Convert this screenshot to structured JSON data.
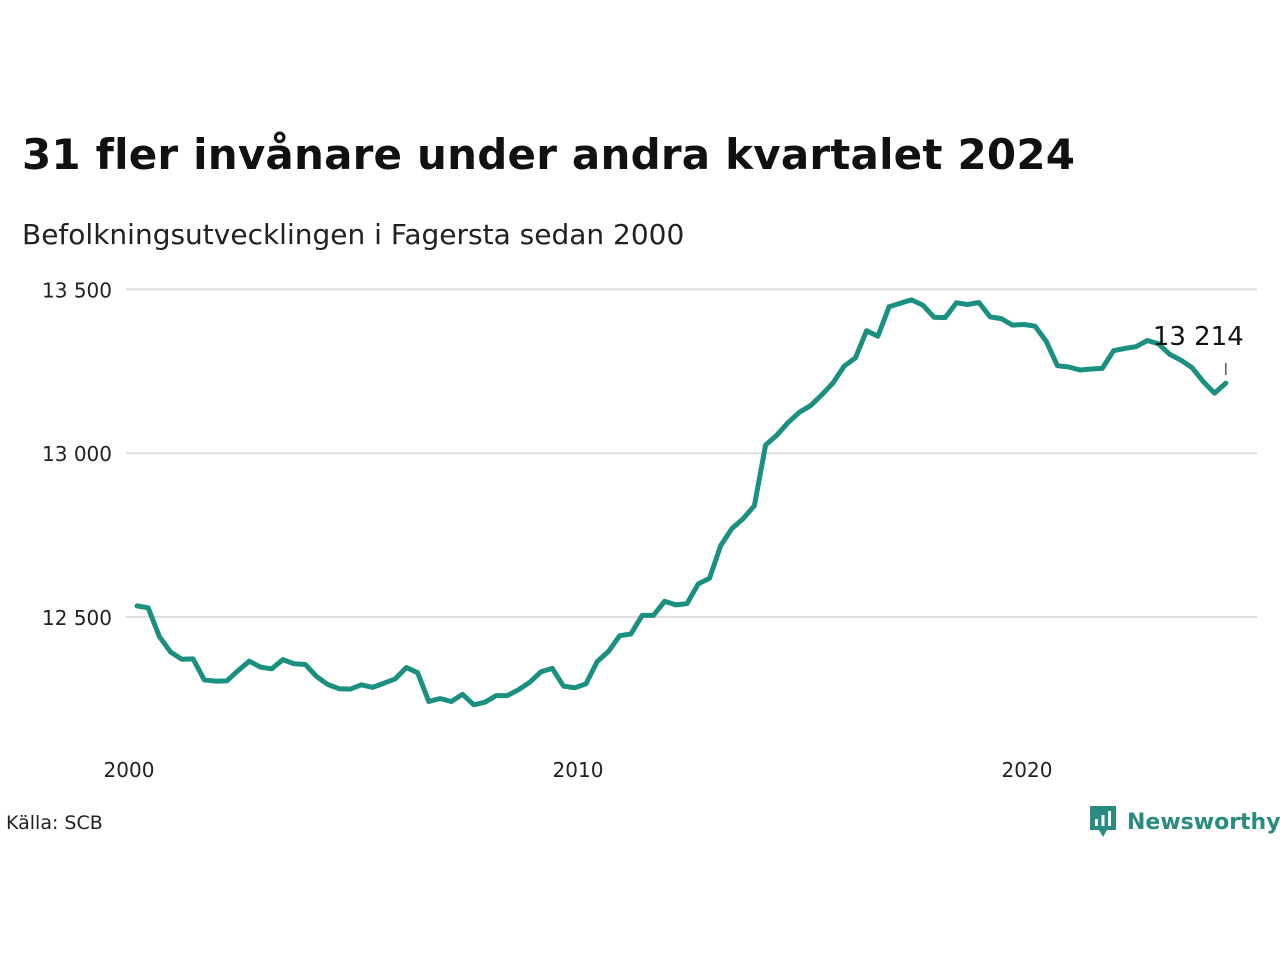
{
  "title": "31 fler invånare under andra kvartalet 2024",
  "subtitle": "Befolkningsutvecklingen i Fagersta sedan 2000",
  "source": "Källa: SCB",
  "brand": {
    "name": "Newsworthy",
    "icon": "newsworthy-logo-icon",
    "color": "#2a8c80"
  },
  "chart_data": {
    "type": "line",
    "x_unit": "year (quarterly)",
    "y_ticks": [
      12500,
      13000,
      13500
    ],
    "y_tick_labels": [
      "12 500",
      "13 000",
      "13 500"
    ],
    "x_ticks": [
      2000,
      2010,
      2020
    ],
    "x_tick_labels": [
      "2000",
      "2010",
      "2020"
    ],
    "ylim": [
      12270,
      13540
    ],
    "xlim": [
      1999.8,
      2024.8
    ],
    "grid": "horizontal",
    "line_color": "#1c9080",
    "annotation": {
      "x": 2024.25,
      "label": "13 214"
    },
    "x": [
      2000.0,
      2000.25,
      2000.5,
      2000.75,
      2001.0,
      2001.25,
      2001.5,
      2001.75,
      2002.0,
      2002.25,
      2002.5,
      2002.75,
      2003.0,
      2003.25,
      2003.5,
      2003.75,
      2004.0,
      2004.25,
      2004.5,
      2004.75,
      2005.0,
      2005.25,
      2005.5,
      2005.75,
      2006.0,
      2006.25,
      2006.5,
      2006.75,
      2007.0,
      2007.25,
      2007.5,
      2007.75,
      2008.0,
      2008.25,
      2008.5,
      2008.75,
      2009.0,
      2009.25,
      2009.5,
      2009.75,
      2010.0,
      2010.25,
      2010.5,
      2010.75,
      2011.0,
      2011.25,
      2011.5,
      2011.75,
      2012.0,
      2012.25,
      2012.5,
      2012.75,
      2013.0,
      2013.25,
      2013.5,
      2013.75,
      2014.0,
      2014.25,
      2014.5,
      2014.75,
      2015.0,
      2015.25,
      2015.5,
      2015.75,
      2016.0,
      2016.25,
      2016.5,
      2016.75,
      2017.0,
      2017.25,
      2017.5,
      2017.75,
      2018.0,
      2018.25,
      2018.5,
      2018.75,
      2019.0,
      2019.25,
      2019.5,
      2019.75,
      2020.0,
      2020.25,
      2020.5,
      2020.75,
      2021.0,
      2021.25,
      2021.5,
      2021.75,
      2022.0,
      2022.25,
      2022.5,
      2022.75,
      2023.0,
      2023.25,
      2023.5,
      2023.75,
      2024.0,
      2024.25
    ],
    "values": [
      12534,
      12528,
      12440,
      12393,
      12371,
      12372,
      12308,
      12304,
      12305,
      12336,
      12365,
      12347,
      12342,
      12370,
      12357,
      12355,
      12318,
      12294,
      12281,
      12280,
      12293,
      12285,
      12298,
      12311,
      12346,
      12330,
      12242,
      12251,
      12242,
      12264,
      12232,
      12240,
      12260,
      12260,
      12278,
      12301,
      12333,
      12343,
      12289,
      12284,
      12296,
      12364,
      12395,
      12443,
      12448,
      12505,
      12505,
      12548,
      12537,
      12541,
      12601,
      12618,
      12718,
      12770,
      12800,
      12840,
      13025,
      13055,
      13093,
      13125,
      13145,
      13178,
      13214,
      13266,
      13291,
      13374,
      13357,
      13447,
      13458,
      13468,
      13452,
      13415,
      13414,
      13459,
      13454,
      13460,
      13416,
      13411,
      13391,
      13393,
      13388,
      13342,
      13267,
      13263,
      13254,
      13257,
      13259,
      13313,
      13320,
      13325,
      13344,
      13334,
      13302,
      13284,
      13261,
      13218,
      13183,
      13214
    ]
  }
}
